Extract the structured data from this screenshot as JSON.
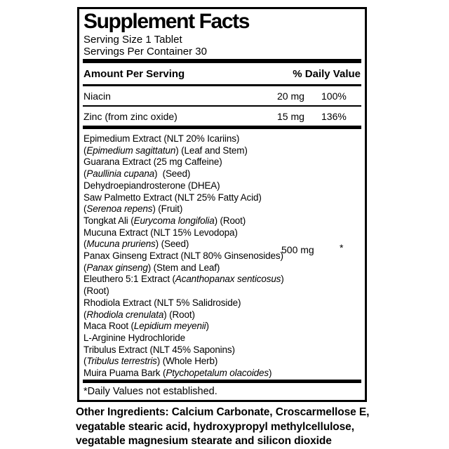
{
  "colors": {
    "ink": "#000000",
    "background": "#ffffff"
  },
  "label": {
    "title": "Supplement Facts",
    "serving_size": "Serving Size 1 Tablet",
    "servings_per_container": "Servings Per Container 30",
    "columns": {
      "amount_header": "Amount Per Serving",
      "daily_value_header": "% Daily Value"
    },
    "nutrients": [
      {
        "name": "Niacin",
        "amount": "20 mg",
        "daily_value": "100%"
      },
      {
        "name": "Zinc (from zinc oxide)",
        "amount": "15 mg",
        "daily_value": "136%"
      }
    ],
    "blend": {
      "amount": "500 mg",
      "daily_value": "*",
      "lines": [
        [
          {
            "t": "Epimedium Extract (NLT 20% Icariins)",
            "i": false
          }
        ],
        [
          {
            "t": "(",
            "i": false
          },
          {
            "t": "Epimedium sagittatun",
            "i": true
          },
          {
            "t": ") (Leaf and Stem)",
            "i": false
          }
        ],
        [
          {
            "t": "Guarana Extract (25 mg Caffeine)",
            "i": false
          }
        ],
        [
          {
            "t": "(",
            "i": false
          },
          {
            "t": "Paullinia cupana",
            "i": true
          },
          {
            "t": ")  (Seed)",
            "i": false
          }
        ],
        [
          {
            "t": "Dehydroepiandrosterone (DHEA)",
            "i": false
          }
        ],
        [
          {
            "t": "Saw Palmetto Extract (NLT 25% Fatty Acid)",
            "i": false
          }
        ],
        [
          {
            "t": "(",
            "i": false
          },
          {
            "t": "Serenoa repens",
            "i": true
          },
          {
            "t": ") (Fruit)",
            "i": false
          }
        ],
        [
          {
            "t": "Tongkat Ali (",
            "i": false
          },
          {
            "t": "Eurycoma longifolia",
            "i": true
          },
          {
            "t": ") (Root)",
            "i": false
          }
        ],
        [
          {
            "t": "Mucuna Extract (NLT 15% Levodopa)",
            "i": false
          }
        ],
        [
          {
            "t": "(",
            "i": false
          },
          {
            "t": "Mucuna pruriens",
            "i": true
          },
          {
            "t": ") (Seed)",
            "i": false
          }
        ],
        [
          {
            "t": "Panax Ginseng Extract (NLT 80% Ginsenosides)",
            "i": false
          }
        ],
        [
          {
            "t": "(",
            "i": false
          },
          {
            "t": "Panax ginseng",
            "i": true
          },
          {
            "t": ") (Stem and Leaf)",
            "i": false
          }
        ],
        [
          {
            "t": "Eleuthero 5:1 Extract (",
            "i": false
          },
          {
            "t": "Acanthopanax senticosus",
            "i": true
          },
          {
            "t": ")",
            "i": false
          }
        ],
        [
          {
            "t": "(Root)",
            "i": false
          }
        ],
        [
          {
            "t": "Rhodiola Extract (NLT 5% Salidroside)",
            "i": false
          }
        ],
        [
          {
            "t": "(",
            "i": false
          },
          {
            "t": "Rhodiola crenulata",
            "i": true
          },
          {
            "t": ") (Root)",
            "i": false
          }
        ],
        [
          {
            "t": "Maca Root (",
            "i": false
          },
          {
            "t": "Lepidium meyenii",
            "i": true
          },
          {
            "t": ")",
            "i": false
          }
        ],
        [
          {
            "t": "L-Arginine Hydrochloride",
            "i": false
          }
        ],
        [
          {
            "t": "Tribulus Extract (NLT 45% Saponins)",
            "i": false
          }
        ],
        [
          {
            "t": "(",
            "i": false
          },
          {
            "t": "Tribulus terrestris",
            "i": true
          },
          {
            "t": ") (Whole Herb)",
            "i": false
          }
        ],
        [
          {
            "t": "Muira Puama Bark (",
            "i": false
          },
          {
            "t": "Ptychopetalum olacoides",
            "i": true
          },
          {
            "t": ")",
            "i": false
          }
        ]
      ]
    },
    "footnote": "*Daily Values not established."
  },
  "other_ingredients": "Other Ingredients: Calcium Carbonate, Croscarmellose E, vegatable stearic acid, hydroxypropyl methylcellulose, vegatable magnesium stearate and silicon dioxide"
}
